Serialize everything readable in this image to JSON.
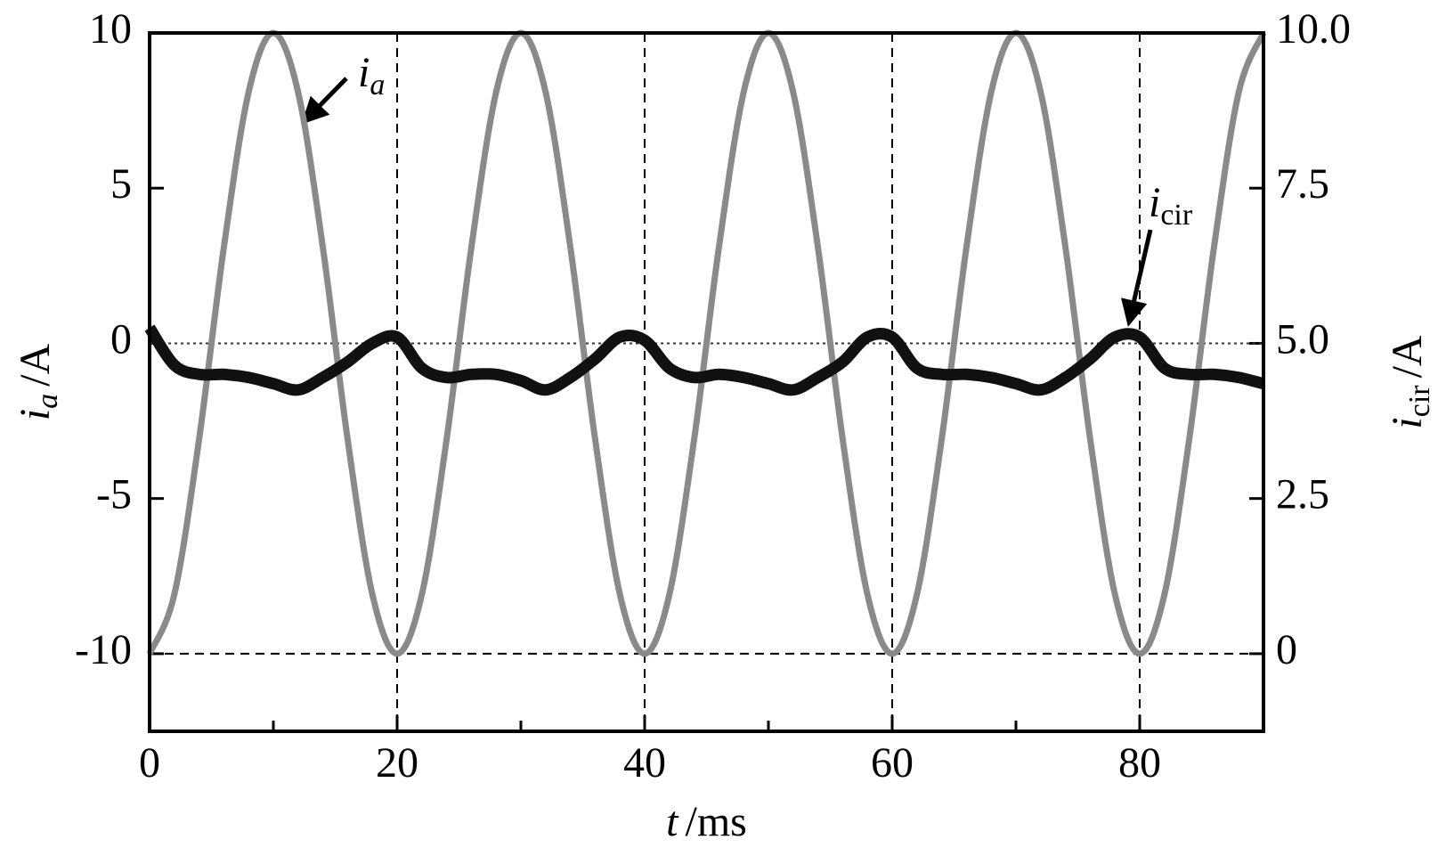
{
  "chart_data": {
    "type": "line",
    "x_label": {
      "var": "t",
      "unit": "/ms"
    },
    "y_label": {
      "var": "i",
      "sub": "a",
      "unit": "/A"
    },
    "y2_label": {
      "var": "i",
      "sub": "cir",
      "unit": "/A"
    },
    "x": [
      0,
      2,
      4,
      6,
      8,
      10,
      12,
      14,
      16,
      18,
      20,
      22,
      24,
      26,
      28,
      30,
      32,
      34,
      36,
      38,
      40,
      42,
      44,
      46,
      48,
      50,
      52,
      54,
      56,
      58,
      60,
      62,
      64,
      66,
      68,
      70,
      72,
      74,
      76,
      78,
      80,
      82,
      84,
      86,
      88,
      90
    ],
    "series": [
      {
        "name": "i_a",
        "color": "#8a8a8a",
        "values": [
          -10,
          -8.09,
          -3.09,
          3.09,
          8.09,
          10,
          8.09,
          3.09,
          -3.09,
          -8.09,
          -10,
          -8.09,
          -3.09,
          3.09,
          8.09,
          10,
          8.09,
          3.09,
          -3.09,
          -8.09,
          -10,
          -8.09,
          -3.09,
          3.09,
          8.09,
          10,
          8.09,
          3.09,
          -3.09,
          -8.09,
          -10,
          -8.09,
          -3.09,
          3.09,
          8.09,
          10,
          8.09,
          3.09,
          -3.09,
          -8.09,
          -10,
          -8.09,
          -3.09,
          3.09,
          8.09,
          10
        ]
      },
      {
        "name": "i_cir",
        "color": "#111111",
        "axis": "y2",
        "values": [
          5.25,
          4.65,
          4.5,
          4.5,
          4.45,
          4.35,
          4.25,
          4.45,
          4.7,
          5.0,
          5.1,
          4.6,
          4.45,
          4.5,
          4.5,
          4.4,
          4.25,
          4.45,
          4.75,
          5.1,
          5.05,
          4.6,
          4.45,
          4.5,
          4.45,
          4.35,
          4.25,
          4.45,
          4.7,
          5.1,
          5.1,
          4.6,
          4.5,
          4.5,
          4.45,
          4.35,
          4.25,
          4.45,
          4.75,
          5.1,
          5.1,
          4.6,
          4.5,
          4.5,
          4.45,
          4.35
        ]
      }
    ],
    "annotations": [
      {
        "var": "i",
        "sub": "a"
      },
      {
        "var": "i",
        "sub": "cir"
      }
    ],
    "xlim": [
      0,
      90
    ],
    "xticks": [
      0,
      20,
      40,
      60,
      80
    ],
    "xminorticks": [
      10,
      30,
      50,
      70
    ],
    "ylim": [
      -12.5,
      10
    ],
    "yticks": [
      10,
      5,
      0,
      -5,
      -10
    ],
    "y2lim": [
      -1.25,
      10
    ],
    "y2ticks": [
      {
        "value": 10,
        "label": "10.0"
      },
      7.5,
      {
        "value": 5,
        "label": "5.0"
      },
      2.5,
      0
    ],
    "grid": true
  }
}
